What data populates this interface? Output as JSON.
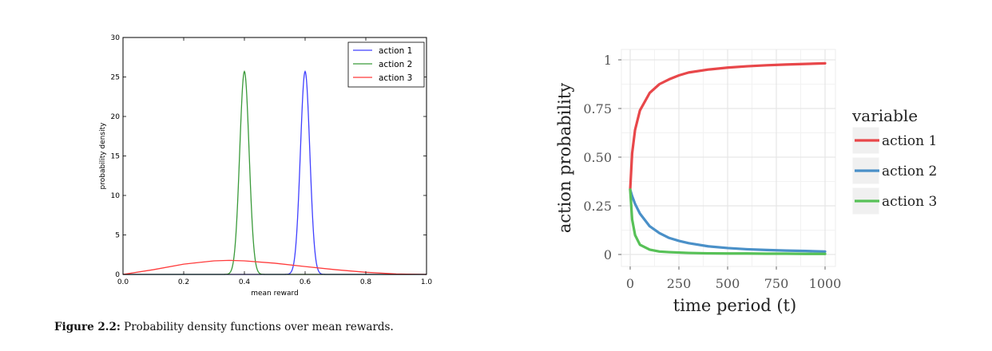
{
  "caption": {
    "label": "Figure 2.2:",
    "text": "Probability density functions over mean rewards."
  },
  "chart_data": [
    {
      "type": "line",
      "title": "",
      "xlabel": "mean reward",
      "ylabel": "probability density",
      "xlim": [
        0.0,
        1.0
      ],
      "ylim": [
        0,
        30
      ],
      "xticks": [
        "0.0",
        "0.2",
        "0.4",
        "0.6",
        "0.8",
        "1.0"
      ],
      "yticks": [
        "0",
        "5",
        "10",
        "15",
        "20",
        "25",
        "30"
      ],
      "grid": false,
      "legend_position": "top-right",
      "series": [
        {
          "name": "action 1",
          "color": "#4040ff",
          "peak_x": 0.6,
          "peak_y": 25.7,
          "sd": 0.0155
        },
        {
          "name": "action 2",
          "color": "#3a9a3a",
          "peak_x": 0.4,
          "peak_y": 25.7,
          "sd": 0.0155
        },
        {
          "name": "action 3",
          "color": "#ff3b3b",
          "x": [
            0.0,
            0.1,
            0.2,
            0.3,
            0.35,
            0.4,
            0.5,
            0.6,
            0.7,
            0.8,
            0.9,
            1.0
          ],
          "y": [
            0.0,
            0.6,
            1.3,
            1.72,
            1.78,
            1.72,
            1.42,
            1.0,
            0.6,
            0.27,
            0.06,
            0.0
          ]
        }
      ]
    },
    {
      "type": "line",
      "title": "",
      "xlabel": "time period (t)",
      "ylabel": "action probability",
      "xlim": [
        0,
        1000
      ],
      "ylim": [
        0,
        1
      ],
      "xticks": [
        "0",
        "250",
        "500",
        "750",
        "1000"
      ],
      "yticks": [
        "0",
        "0.25",
        "0.50",
        "0.75",
        "1"
      ],
      "grid": true,
      "legend_title": "variable",
      "legend_position": "right",
      "series": [
        {
          "name": "action 1",
          "color": "#e8474a",
          "x": [
            0,
            10,
            25,
            50,
            100,
            150,
            200,
            250,
            300,
            400,
            500,
            600,
            700,
            800,
            900,
            1000
          ],
          "y": [
            0.333,
            0.52,
            0.64,
            0.74,
            0.83,
            0.875,
            0.9,
            0.92,
            0.935,
            0.95,
            0.96,
            0.967,
            0.972,
            0.976,
            0.979,
            0.982
          ]
        },
        {
          "name": "action 2",
          "color": "#4a90c8",
          "x": [
            0,
            10,
            25,
            50,
            100,
            150,
            200,
            250,
            300,
            400,
            500,
            600,
            700,
            800,
            900,
            1000
          ],
          "y": [
            0.333,
            0.3,
            0.26,
            0.21,
            0.145,
            0.11,
            0.085,
            0.07,
            0.058,
            0.042,
            0.033,
            0.027,
            0.023,
            0.02,
            0.018,
            0.015
          ]
        },
        {
          "name": "action 3",
          "color": "#57c157",
          "x": [
            0,
            10,
            25,
            50,
            100,
            150,
            200,
            250,
            300,
            400,
            500,
            600,
            700,
            800,
            900,
            1000
          ],
          "y": [
            0.333,
            0.18,
            0.1,
            0.05,
            0.025,
            0.015,
            0.012,
            0.01,
            0.008,
            0.006,
            0.005,
            0.005,
            0.004,
            0.004,
            0.003,
            0.003
          ]
        }
      ]
    }
  ]
}
